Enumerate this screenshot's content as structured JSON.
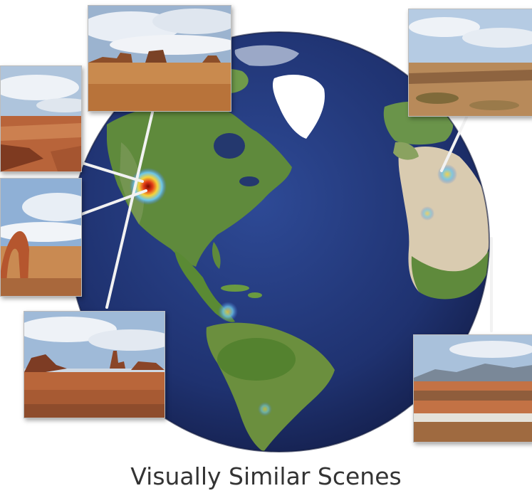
{
  "caption": "Visually Similar Scenes",
  "colors": {
    "ocean": "#1f3270",
    "land": "#5f8a3c",
    "desert": "#d9cbb0",
    "ice": "#ffffff",
    "hotspot": "#e23b16",
    "connector": "#f2f2f2"
  },
  "scenes": [
    {
      "name": "monument-valley-buttes"
    },
    {
      "name": "canyon-overlook"
    },
    {
      "name": "delicate-arch"
    },
    {
      "name": "desert-spires"
    },
    {
      "name": "sahara-plateau"
    },
    {
      "name": "desert-plain-mountains"
    }
  ]
}
